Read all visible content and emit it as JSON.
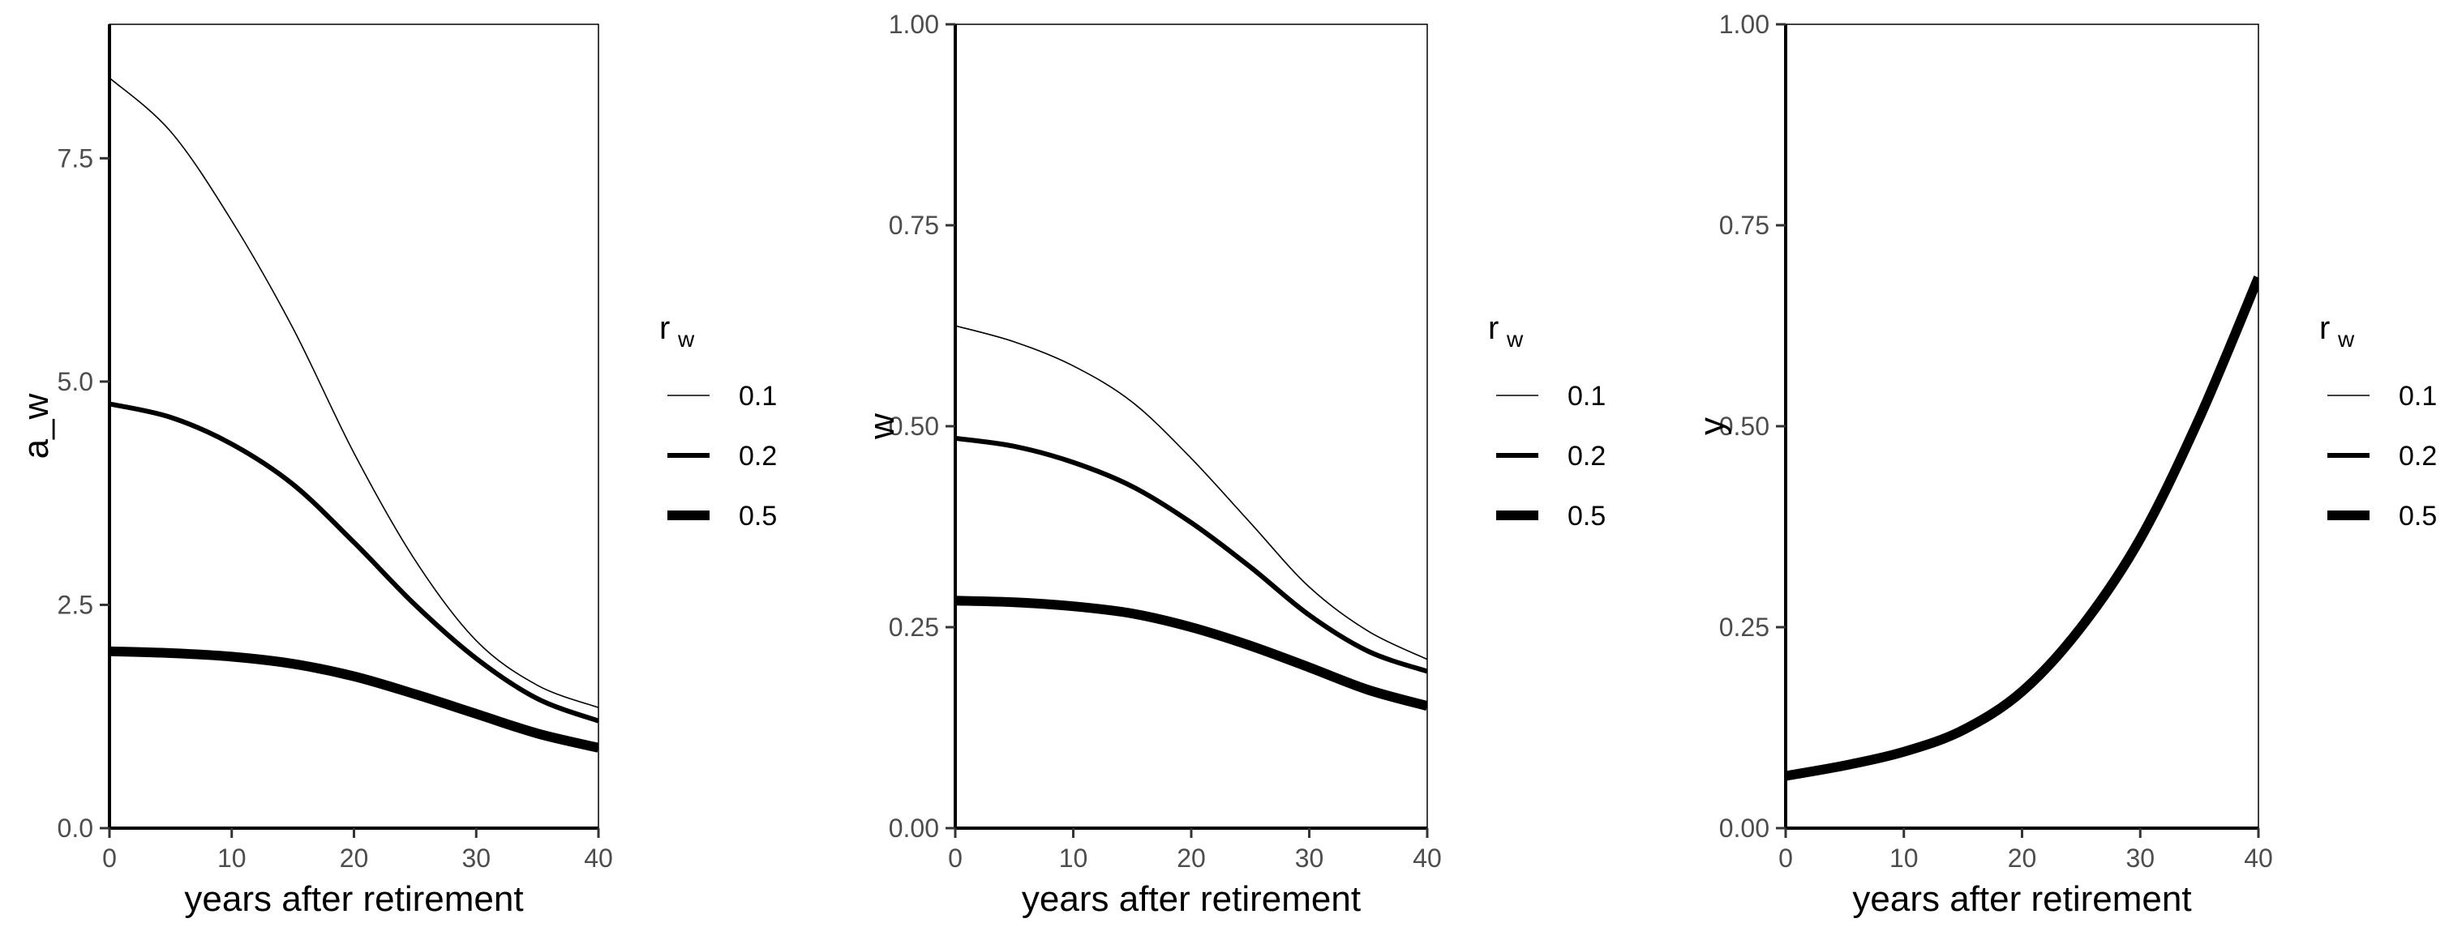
{
  "chart_data": [
    {
      "type": "line",
      "xlabel": "years after retirement",
      "ylabel": "a_w",
      "xlim": [
        0,
        40
      ],
      "ylim": [
        0,
        9
      ],
      "xticks": [
        0,
        10,
        20,
        30,
        40
      ],
      "yticks": [
        0,
        2.5,
        5,
        7.5
      ],
      "ytick_labels": [
        "0.0",
        "2.5",
        "5.0",
        "7.5"
      ],
      "grid": false,
      "legend": {
        "title": "r",
        "title_subscript": "w",
        "position": "right",
        "labels": [
          "0.1",
          "0.2",
          "0.5"
        ]
      },
      "series": [
        {
          "name": "0.1",
          "x": [
            0,
            5,
            10,
            15,
            20,
            25,
            30,
            35,
            40
          ],
          "values": [
            8.4,
            7.8,
            6.8,
            5.6,
            4.2,
            3.0,
            2.1,
            1.6,
            1.35
          ]
        },
        {
          "name": "0.2",
          "x": [
            0,
            5,
            10,
            15,
            20,
            25,
            30,
            35,
            40
          ],
          "values": [
            4.75,
            4.6,
            4.3,
            3.85,
            3.2,
            2.5,
            1.9,
            1.45,
            1.2
          ]
        },
        {
          "name": "0.5",
          "x": [
            0,
            5,
            10,
            15,
            20,
            25,
            30,
            35,
            40
          ],
          "values": [
            1.98,
            1.96,
            1.92,
            1.84,
            1.7,
            1.5,
            1.28,
            1.06,
            0.9
          ]
        }
      ]
    },
    {
      "type": "line",
      "xlabel": "years after retirement",
      "ylabel": "w",
      "xlim": [
        0,
        40
      ],
      "ylim": [
        0,
        1
      ],
      "xticks": [
        0,
        10,
        20,
        30,
        40
      ],
      "yticks": [
        0,
        0.25,
        0.5,
        0.75,
        1
      ],
      "ytick_labels": [
        "0.00",
        "0.25",
        "0.50",
        "0.75",
        "1.00"
      ],
      "grid": false,
      "legend": {
        "title": "r",
        "title_subscript": "w",
        "position": "right",
        "labels": [
          "0.1",
          "0.2",
          "0.5"
        ]
      },
      "series": [
        {
          "name": "0.1",
          "x": [
            0,
            5,
            10,
            15,
            20,
            25,
            30,
            35,
            40
          ],
          "values": [
            0.625,
            0.605,
            0.575,
            0.53,
            0.46,
            0.38,
            0.3,
            0.245,
            0.21
          ]
        },
        {
          "name": "0.2",
          "x": [
            0,
            5,
            10,
            15,
            20,
            25,
            30,
            35,
            40
          ],
          "values": [
            0.485,
            0.475,
            0.455,
            0.425,
            0.38,
            0.325,
            0.265,
            0.22,
            0.195
          ]
        },
        {
          "name": "0.5",
          "x": [
            0,
            5,
            10,
            15,
            20,
            25,
            30,
            35,
            40
          ],
          "values": [
            0.283,
            0.281,
            0.276,
            0.267,
            0.25,
            0.227,
            0.2,
            0.172,
            0.152
          ]
        }
      ]
    },
    {
      "type": "line",
      "xlabel": "years after retirement",
      "ylabel": "y",
      "xlim": [
        0,
        40
      ],
      "ylim": [
        0,
        1
      ],
      "xticks": [
        0,
        10,
        20,
        30,
        40
      ],
      "yticks": [
        0,
        0.25,
        0.5,
        0.75,
        1
      ],
      "ytick_labels": [
        "0.00",
        "0.25",
        "0.50",
        "0.75",
        "1.00"
      ],
      "grid": false,
      "legend": {
        "title": "r",
        "title_subscript": "w",
        "position": "right",
        "labels": [
          "0.1",
          "0.2",
          "0.5"
        ]
      },
      "series": [
        {
          "name": "0.5",
          "x": [
            0,
            5,
            10,
            15,
            20,
            25,
            30,
            35,
            40
          ],
          "values": [
            0.065,
            0.078,
            0.095,
            0.122,
            0.17,
            0.25,
            0.36,
            0.51,
            0.685
          ]
        }
      ]
    }
  ],
  "line_widths": {
    "0.1": 1.6,
    "0.2": 6,
    "0.5": 12
  },
  "colors": {
    "line": "#000000",
    "axis": "#000000",
    "tick_text": "#4d4d4d"
  }
}
